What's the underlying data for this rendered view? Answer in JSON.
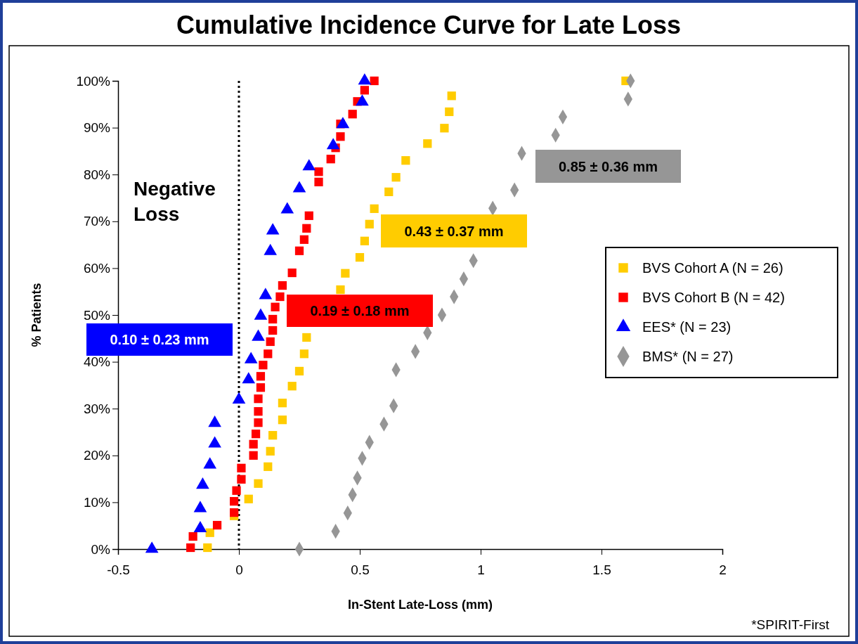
{
  "chart_data": {
    "type": "scatter",
    "title": "Cumulative Incidence Curve for Late Loss",
    "xlabel": "In-Stent Late-Loss (mm)",
    "ylabel": "% Patients",
    "xlim": [
      -0.5,
      2
    ],
    "xticks": [
      -0.5,
      0,
      0.5,
      1,
      1.5,
      2
    ],
    "ylim": [
      0,
      100
    ],
    "yticks": [
      {
        "value": 0,
        "label": "0%"
      },
      {
        "value": 10,
        "label": "10%"
      },
      {
        "value": 20,
        "label": "20%"
      },
      {
        "value": 30,
        "label": "30%"
      },
      {
        "value": 40,
        "label": "40%"
      },
      {
        "value": 50,
        "label": "50%"
      },
      {
        "value": 60,
        "label": "60%"
      },
      {
        "value": 70,
        "label": "70%"
      },
      {
        "value": 80,
        "label": "80%"
      },
      {
        "value": 90,
        "label": "90%"
      },
      {
        "value": 100,
        "label": "100%"
      }
    ],
    "grid": false,
    "legend": "right",
    "ref_lines": [
      {
        "axis": "x",
        "value": 0,
        "color": "#000000",
        "line_style": "dotted"
      }
    ],
    "annotations": [
      "Negative Loss",
      "0.10 ± 0.23 mm",
      "0.19 ± 0.18 mm",
      "0.43 ± 0.37 mm",
      "0.85 ± 0.36 mm",
      "*SPIRIT-First"
    ],
    "series": [
      {
        "name": "BVS Cohort A (N = 26)",
        "color": "#ffcc00",
        "marker": "square",
        "x": [
          -0.13,
          -0.12,
          -0.02,
          0.04,
          0.08,
          0.12,
          0.13,
          0.14,
          0.18,
          0.18,
          0.22,
          0.25,
          0.27,
          0.28,
          0.42,
          0.44,
          0.5,
          0.52,
          0.54,
          0.56,
          0.62,
          0.65,
          0.69,
          0.78,
          0.85,
          0.87,
          0.88,
          1.6
        ],
        "values": [
          0.3,
          3.5,
          7.1,
          10.7,
          14.0,
          17.6,
          20.9,
          24.3,
          27.6,
          31.2,
          34.8,
          38.0,
          41.7,
          45.2,
          55.4,
          58.9,
          62.3,
          65.8,
          69.4,
          72.7,
          76.3,
          79.4,
          83.0,
          86.6,
          89.9,
          93.4,
          96.8,
          100
        ]
      },
      {
        "name": "BVS Cohort B (N = 42)",
        "color": "#ff0000",
        "marker": "square",
        "x": [
          -0.2,
          -0.19,
          -0.09,
          -0.02,
          -0.02,
          -0.01,
          0.01,
          0.01,
          0.06,
          0.06,
          0.07,
          0.08,
          0.08,
          0.08,
          0.09,
          0.09,
          0.1,
          0.12,
          0.13,
          0.14,
          0.14,
          0.15,
          0.17,
          0.18,
          0.22,
          0.25,
          0.27,
          0.28,
          0.29,
          0.33,
          0.33,
          0.38,
          0.4,
          0.42,
          0.42,
          0.47,
          0.49,
          0.52,
          0.56
        ],
        "values": [
          0.3,
          2.7,
          5.1,
          7.8,
          10.2,
          12.5,
          14.9,
          17.3,
          20.0,
          22.4,
          24.6,
          27.0,
          29.4,
          32.1,
          34.5,
          36.9,
          39.3,
          41.7,
          44.3,
          46.7,
          49.1,
          51.7,
          53.9,
          56.3,
          59.0,
          63.7,
          66.1,
          68.5,
          71.2,
          78.4,
          80.6,
          83.3,
          85.7,
          88.1,
          90.8,
          92.9,
          95.6,
          98.0,
          100
        ]
      },
      {
        "name": "EES* (N = 23)",
        "color": "#0000ff",
        "marker": "triangle",
        "x": [
          -0.36,
          -0.16,
          -0.16,
          -0.15,
          -0.12,
          -0.1,
          -0.1,
          0.0,
          0.04,
          0.05,
          0.08,
          0.09,
          0.11,
          0.13,
          0.14,
          0.2,
          0.25,
          0.29,
          0.39,
          0.43,
          0.51,
          0.52
        ],
        "values": [
          0,
          4.4,
          8.7,
          13.7,
          18.0,
          22.5,
          26.9,
          31.9,
          36.2,
          40.5,
          45.3,
          49.8,
          54.2,
          63.6,
          68.0,
          72.5,
          77.0,
          81.7,
          86.2,
          90.7,
          95.5,
          100
        ]
      },
      {
        "name": "BMS* (N = 27)",
        "color": "#969696",
        "marker": "diamond",
        "x": [
          0.25,
          0.4,
          0.45,
          0.47,
          0.49,
          0.51,
          0.54,
          0.6,
          0.64,
          0.65,
          0.73,
          0.78,
          0.84,
          0.89,
          0.93,
          0.97,
          1.05,
          1.14,
          1.17,
          1.31,
          1.34,
          1.61,
          1.62
        ],
        "values": [
          0,
          3.8,
          7.7,
          11.6,
          15.2,
          19.4,
          22.8,
          26.7,
          30.6,
          38.3,
          42.2,
          46.2,
          50.0,
          53.9,
          57.7,
          61.6,
          72.8,
          76.7,
          84.5,
          88.4,
          92.3,
          96.1,
          100
        ]
      }
    ]
  }
}
